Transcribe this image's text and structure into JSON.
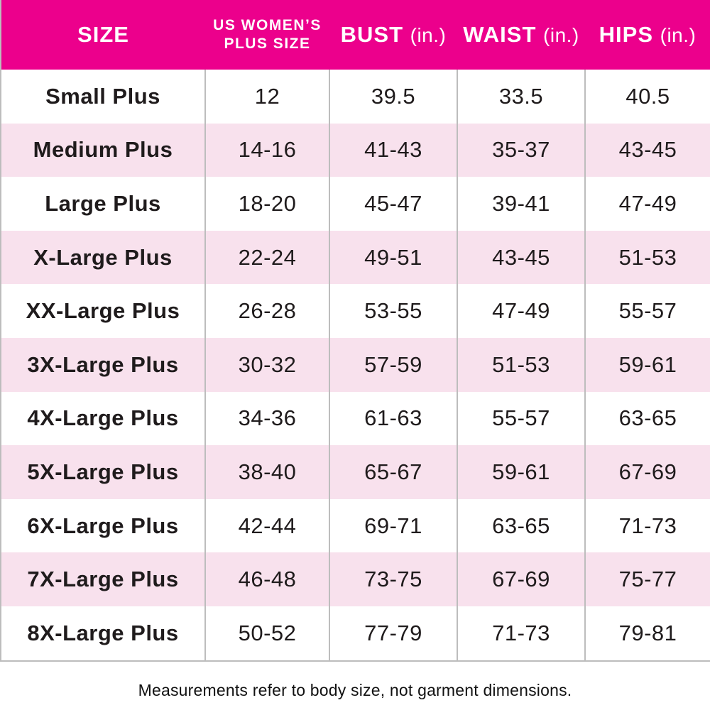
{
  "header": {
    "col_size": "SIZE",
    "col_plus_line1": "US WOMEN’S",
    "col_plus_line2": "PLUS SIZE",
    "col_bust": "BUST",
    "col_waist": "WAIST",
    "col_hips": "HIPS",
    "unit_in": "(in.)"
  },
  "footer_note": "Measurements refer to body size, not garment dimensions.",
  "colors": {
    "header_bg": "#EC008C",
    "header_text": "#FFFFFF",
    "row_alt_bg": "#F8E1ED",
    "divider": "#BDBDBD",
    "text": "#1F1B1C"
  },
  "chart_data": {
    "type": "table",
    "title": "US Women's Plus Size Chart",
    "columns": [
      "SIZE",
      "US WOMEN’S PLUS SIZE",
      "BUST (in.)",
      "WAIST (in.)",
      "HIPS (in.)"
    ],
    "rows": [
      [
        "Small Plus",
        "12",
        "39.5",
        "33.5",
        "40.5"
      ],
      [
        "Medium Plus",
        "14-16",
        "41-43",
        "35-37",
        "43-45"
      ],
      [
        "Large Plus",
        "18-20",
        "45-47",
        "39-41",
        "47-49"
      ],
      [
        "X-Large Plus",
        "22-24",
        "49-51",
        "43-45",
        "51-53"
      ],
      [
        "XX-Large Plus",
        "26-28",
        "53-55",
        "47-49",
        "55-57"
      ],
      [
        "3X-Large Plus",
        "30-32",
        "57-59",
        "51-53",
        "59-61"
      ],
      [
        "4X-Large Plus",
        "34-36",
        "61-63",
        "55-57",
        "63-65"
      ],
      [
        "5X-Large Plus",
        "38-40",
        "65-67",
        "59-61",
        "67-69"
      ],
      [
        "6X-Large Plus",
        "42-44",
        "69-71",
        "63-65",
        "71-73"
      ],
      [
        "7X-Large Plus",
        "46-48",
        "73-75",
        "67-69",
        "75-77"
      ],
      [
        "8X-Large Plus",
        "50-52",
        "77-79",
        "71-73",
        "79-81"
      ]
    ],
    "note": "Measurements refer to body size, not garment dimensions.",
    "layout_hints": {
      "row_striping": "alternating white and light pink, starting white",
      "header_style": "bold white text on magenta",
      "grid": "vertical dividers between columns in body only"
    }
  }
}
